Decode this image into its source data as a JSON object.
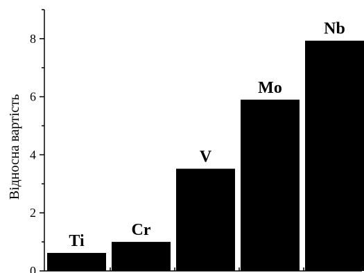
{
  "chart_data": {
    "type": "bar",
    "categories": [
      "Ti",
      "Cr",
      "V",
      "Mo",
      "Nb"
    ],
    "values": [
      0.62,
      1.0,
      3.52,
      5.9,
      7.93
    ],
    "xlabel": "",
    "ylabel": "Відносна вартість",
    "ylim": [
      0,
      9
    ],
    "yticks": [
      0,
      2,
      4,
      6,
      8
    ],
    "bar_color": "#000000",
    "grid": false,
    "legend": "none"
  }
}
